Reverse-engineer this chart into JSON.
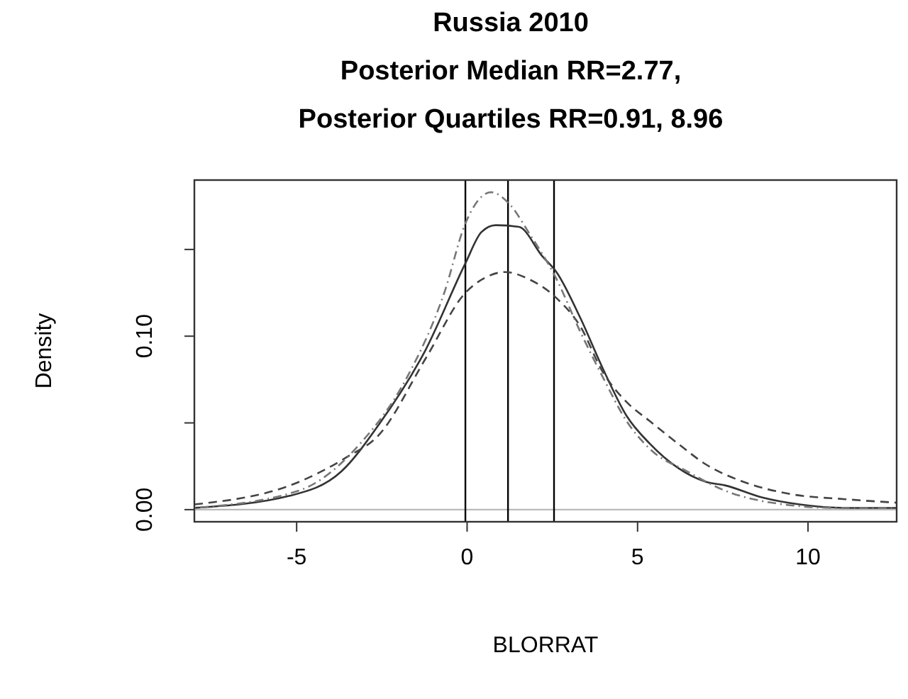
{
  "chart_data": {
    "type": "line",
    "title": "Russia 2010\nPosterior Median RR=2.77,\nPosterior Quartiles RR=0.91, 8.96",
    "xlabel": "BLORRAT",
    "ylabel": "Density",
    "xlim": [
      -8,
      12.6
    ],
    "xticks": [
      -5,
      0,
      5,
      10
    ],
    "ylim": [
      -0.007,
      0.19
    ],
    "yticks": [
      {
        "value": 0,
        "label": "0.00"
      },
      {
        "value": 0.05,
        "label": null
      },
      {
        "value": 0.1,
        "label": "0.10"
      },
      {
        "value": 0.15,
        "label": null
      }
    ],
    "grid": false,
    "marker": "none",
    "ref_lines": [
      {
        "axis": "y",
        "value": 0,
        "color": "#bbbbbb"
      },
      {
        "axis": "x",
        "value": -0.05,
        "color": "#000000"
      },
      {
        "axis": "x",
        "value": 1.2,
        "color": "#000000"
      },
      {
        "axis": "x",
        "value": 2.55,
        "color": "#000000"
      }
    ],
    "series": [
      {
        "color": "#333333",
        "line_style": "solid",
        "x": [
          -8.0,
          -5.2,
          -3.69,
          -2.59,
          -1.22,
          -0.05,
          0.42,
          0.84,
          1.52,
          2.21,
          2.62,
          3.31,
          3.99,
          4.68,
          5.36,
          6.19,
          7.01,
          7.56,
          8.66,
          9.75,
          11.1,
          12.6
        ],
        "values": [
          0.001,
          0.008,
          0.022,
          0.049,
          0.092,
          0.142,
          0.16,
          0.164,
          0.163,
          0.146,
          0.137,
          0.111,
          0.081,
          0.054,
          0.038,
          0.024,
          0.016,
          0.014,
          0.007,
          0.003,
          0.001,
          0.001
        ]
      },
      {
        "color": "#444444",
        "line_style": "dashed",
        "x": [
          -8.0,
          -4.93,
          -3.55,
          -2.59,
          -1.22,
          -0.05,
          0.56,
          1.11,
          1.8,
          2.62,
          3.31,
          3.99,
          4.68,
          5.36,
          6.19,
          7.01,
          8.11,
          9.48,
          11.1,
          12.6
        ],
        "values": [
          0.003,
          0.016,
          0.03,
          0.043,
          0.087,
          0.125,
          0.134,
          0.137,
          0.133,
          0.122,
          0.106,
          0.079,
          0.062,
          0.051,
          0.038,
          0.026,
          0.016,
          0.009,
          0.006,
          0.004
        ]
      },
      {
        "color": "#777777",
        "line_style": "dotted",
        "x": [
          -8.0,
          -4.93,
          -3.14,
          -1.77,
          -0.67,
          -0.05,
          0.7,
          1.25,
          1.8,
          2.62,
          3.31,
          3.99,
          4.68,
          5.36,
          6.46,
          7.56,
          8.93,
          10.85,
          12.6
        ],
        "values": [
          0.001,
          0.011,
          0.038,
          0.076,
          0.125,
          0.165,
          0.183,
          0.176,
          0.16,
          0.133,
          0.103,
          0.076,
          0.051,
          0.035,
          0.022,
          0.011,
          0.004,
          0.001,
          0.001
        ]
      }
    ]
  }
}
